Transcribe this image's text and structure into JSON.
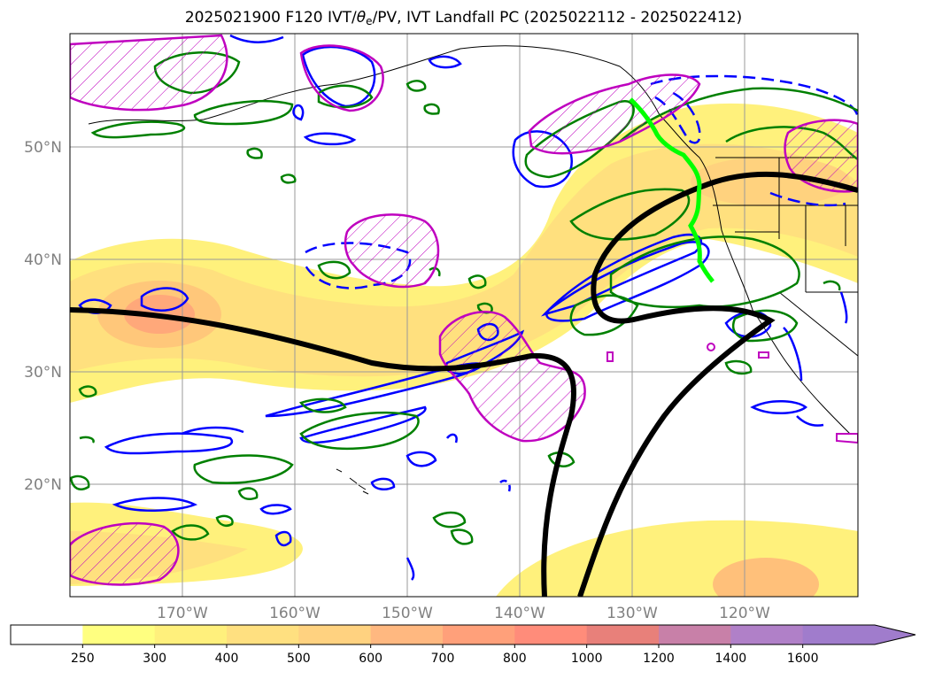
{
  "title": {
    "prefix": "2025021900 F120 IVT/",
    "theta": "θ",
    "theta_sub": "e",
    "suffix": "/PV, IVT Landfall PC (2025022112 - 2025022412)"
  },
  "map": {
    "projection": "mercator",
    "lon_range": [
      -180,
      -110
    ],
    "lat_range": [
      10,
      60
    ],
    "lat_labels": [
      "50°N",
      "40°N",
      "30°N",
      "20°N"
    ],
    "lon_labels": [
      "170°W",
      "160°W",
      "150°W",
      "140°W",
      "130°W",
      "120°W"
    ],
    "contour_colors": {
      "pv_low": "#0000ff",
      "theta_e": "#008000",
      "pv_high": "#bf00bf",
      "pc_line": "#000000",
      "landfall": "#00ff00"
    }
  },
  "colorbar": {
    "levels": [
      "250",
      "300",
      "400",
      "500",
      "600",
      "700",
      "800",
      "1000",
      "1200",
      "1400",
      "1600"
    ],
    "colors": [
      "#ffffff",
      "#ffff80",
      "#fff07c",
      "#ffe080",
      "#ffd280",
      "#ffb880",
      "#ffa07a",
      "#ff8c7a",
      "#e8807a",
      "#c880a8",
      "#b080c8",
      "#a07ccc"
    ],
    "extend": "max"
  }
}
